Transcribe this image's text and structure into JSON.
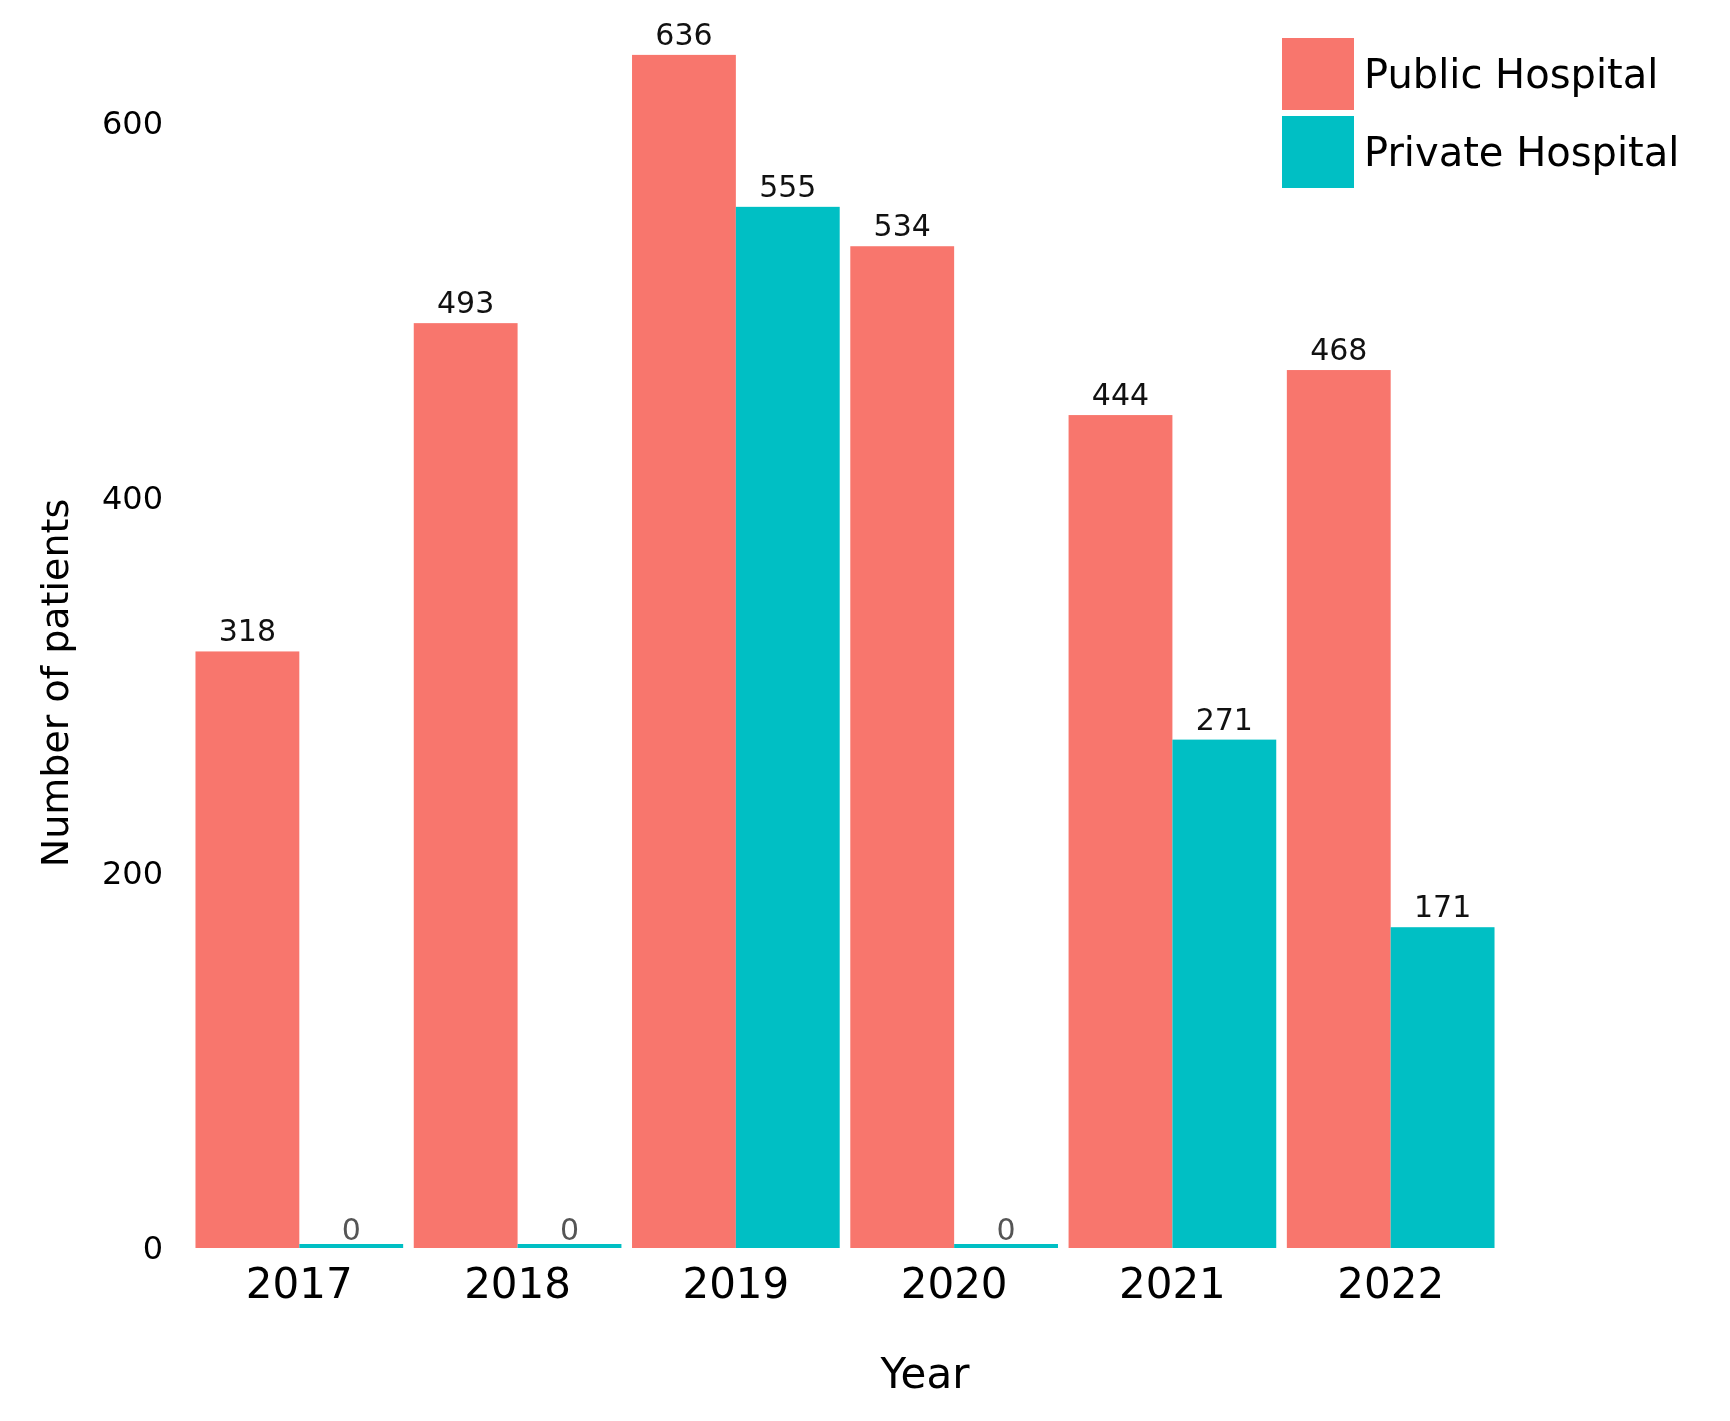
{
  "chart_data": {
    "type": "bar",
    "xlabel": "Year",
    "ylabel": "Number of patients",
    "categories": [
      "2017",
      "2018",
      "2019",
      "2020",
      "2021",
      "2022"
    ],
    "series": [
      {
        "name": "Public Hospital",
        "color": "#f8766d",
        "values": [
          318,
          493,
          636,
          534,
          444,
          468
        ]
      },
      {
        "name": "Private Hospital",
        "color": "#00bfc4",
        "values": [
          0,
          0,
          555,
          0,
          271,
          171
        ]
      }
    ],
    "ylim": [
      0,
      645
    ],
    "yticks": [
      0,
      200,
      400,
      600
    ],
    "data_labels": true,
    "legend": "top right"
  }
}
